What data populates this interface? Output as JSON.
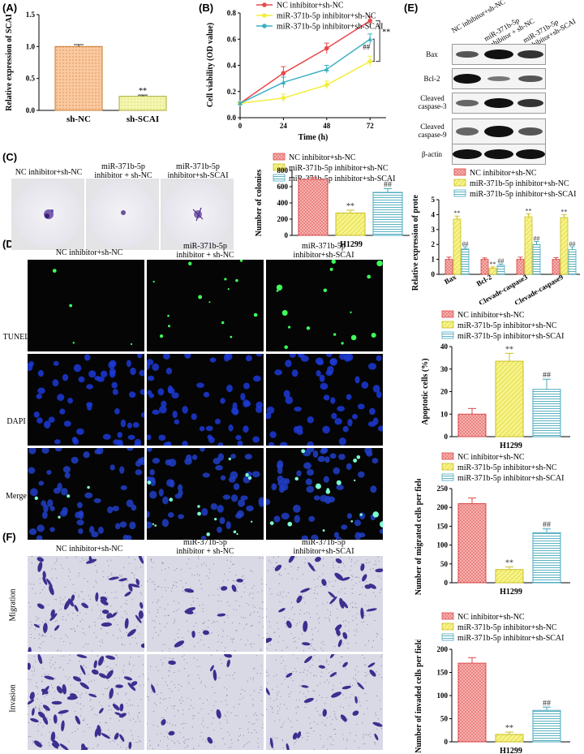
{
  "panels": {
    "A": {
      "label": "(A)",
      "chart_data": {
        "type": "bar",
        "categories": [
          "sh-NC",
          "sh-SCAI"
        ],
        "values": [
          1.0,
          0.22
        ],
        "errors": [
          0.03,
          0.02
        ],
        "ylabel": "Relative expression of SCAI",
        "ylim": [
          0,
          1.5
        ],
        "yticks": [
          "0.0",
          "0.5",
          "1.0",
          "1.5"
        ],
        "significance": [
          "",
          "**"
        ],
        "colors": [
          "#f7c79a",
          "#f4f7a8"
        ]
      }
    },
    "B": {
      "label": "(B)",
      "chart_data": {
        "type": "line",
        "x": [
          0,
          24,
          48,
          72
        ],
        "xticks": [
          "0",
          "24",
          "48",
          "72"
        ],
        "xlabel": "Time (h)",
        "ylabel": "Cell viability (OD value)",
        "ylim": [
          0,
          0.8
        ],
        "yticks": [
          "0.0",
          "0.2",
          "0.4",
          "0.6",
          "0.8"
        ],
        "series": [
          {
            "name": "NC inhibitor+sh-NC",
            "values": [
              0.11,
              0.34,
              0.53,
              0.74
            ],
            "errors": [
              0.01,
              0.05,
              0.04,
              0.03
            ],
            "color": "#e8484a"
          },
          {
            "name": "miR-371b-5p inhibitor+sh-NC",
            "values": [
              0.11,
              0.15,
              0.25,
              0.43
            ],
            "errors": [
              0.01,
              0.03,
              0.03,
              0.04
            ],
            "color": "#f2ee3a"
          },
          {
            "name": "miR-371b-5p inhibitor+sh-SCAI",
            "values": [
              0.11,
              0.27,
              0.37,
              0.6
            ],
            "errors": [
              0.01,
              0.04,
              0.03,
              0.04
            ],
            "color": "#3cb1c3"
          }
        ],
        "annotations": [
          "**",
          "##"
        ]
      }
    },
    "C": {
      "label": "(C)",
      "photo_captions": [
        "NC inhibitor+sh-NC",
        "miR-371b-5p\ninhibitor + sh-NC",
        "miR-371b-5p\ninhibitor+sh-SCAI"
      ],
      "chart_data": {
        "type": "bar",
        "categories": [
          "NC inhibitor+sh-NC",
          "miR-371b-5p inhibitor+sh-NC",
          "miR-371b-5p inhibitor+sh-SCAI"
        ],
        "values": [
          690,
          275,
          530
        ],
        "errors": [
          22,
          35,
          45
        ],
        "ylabel": "Number  of  colonies",
        "xlabel": "H1299",
        "ylim": [
          0,
          800
        ],
        "yticks": [
          "0",
          "200",
          "400",
          "600",
          "800"
        ],
        "significance": [
          "",
          "**",
          "##"
        ]
      }
    },
    "D": {
      "label": "(D)",
      "column_captions": [
        "NC inhibitor+sh-NC",
        "miR-371b-5p\ninhibitor + sh-NC",
        "miR-371b-5p\ninhibitor+sh-SCAI"
      ],
      "row_labels": [
        "TUNEL",
        "DAPI",
        "Merge"
      ],
      "chart_data": {
        "type": "bar",
        "categories": [
          "NC inhibitor+sh-NC",
          "miR-371b-5p inhibitor+sh-NC",
          "miR-371b-5p inhibitor+sh-SCAI"
        ],
        "values": [
          10,
          33.5,
          21
        ],
        "errors": [
          2.5,
          3.5,
          4.5
        ],
        "ylabel": "Apoptotic cells (%)",
        "xlabel": "H1299",
        "ylim": [
          0,
          40
        ],
        "yticks": [
          "0",
          "10",
          "20",
          "30",
          "40"
        ],
        "significance": [
          "",
          "**",
          "##"
        ]
      }
    },
    "E": {
      "label": "(E)",
      "lane_labels": [
        "NC inhibitor+sh-NC",
        "miR-371b-5p inhibitor + sh-NC",
        "miR-371b-5p inhibitor+sh-SCAI"
      ],
      "blot_labels": [
        "Bax",
        "Bcl-2",
        "Cleaved\ncaspase-3",
        "Cleaved\ncaspase-9",
        "β-actin"
      ],
      "chart_data": {
        "type": "bar",
        "categories": [
          "Bax",
          "Bcl-2",
          "Clevade-caspase3",
          "Clevade-caspase9"
        ],
        "series": [
          {
            "name": "NC inhibitor+sh-NC",
            "values": [
              1.0,
              1.0,
              1.0,
              1.0
            ],
            "errors": [
              0.15,
              0.1,
              0.15,
              0.12
            ]
          },
          {
            "name": "miR-371b-5p inhibitor+sh-NC",
            "values": [
              3.7,
              0.4,
              3.85,
              3.8
            ],
            "errors": [
              0.2,
              0.1,
              0.2,
              0.2
            ]
          },
          {
            "name": "miR-371b-5p inhibitor+sh-SCAI",
            "values": [
              1.7,
              0.6,
              2.0,
              1.65
            ],
            "errors": [
              0.15,
              0.1,
              0.2,
              0.2
            ]
          }
        ],
        "ylabel": "Relative expression of protein",
        "ylim": [
          0,
          5
        ],
        "yticks": [
          "0",
          "1",
          "2",
          "3",
          "4",
          "5"
        ],
        "significance": [
          [
            "",
            "**",
            "##"
          ],
          [
            "",
            "**",
            "##"
          ],
          [
            "",
            "**",
            "##"
          ],
          [
            "",
            "**",
            "##"
          ]
        ]
      }
    },
    "F": {
      "label": "(F)",
      "column_captions": [
        "NC inhibitor+sh-NC",
        "miR-371b-5p\ninhibitor + sh-NC",
        "miR-371b-5p\ninhibitor+sh-SCAI"
      ],
      "row_labels": [
        "Migration",
        "Invasion"
      ],
      "migration_chart": {
        "type": "bar",
        "categories": [
          "NC inhibitor+sh-NC",
          "miR-371b-5p inhibitor+sh-NC",
          "miR-371b-5p inhibitor+sh-SCAI"
        ],
        "values": [
          210,
          35,
          133
        ],
        "errors": [
          15,
          7,
          10
        ],
        "ylabel": "Number of migrated cells per field",
        "xlabel": "H1299",
        "ylim": [
          0,
          250
        ],
        "yticks": [
          "0",
          "50",
          "100",
          "150",
          "200",
          "250"
        ],
        "significance": [
          "",
          "**",
          "##"
        ]
      },
      "invasion_chart": {
        "type": "bar",
        "categories": [
          "NC inhibitor+sh-NC",
          "miR-371b-5p inhibitor+sh-NC",
          "miR-371b-5p inhibitor+sh-SCAI"
        ],
        "values": [
          170,
          16,
          68
        ],
        "errors": [
          12,
          5,
          7
        ],
        "ylabel": "Number of invaded cells per field",
        "xlabel": "H1299",
        "ylim": [
          0,
          200
        ],
        "yticks": [
          "0",
          "50",
          "100",
          "150",
          "200"
        ],
        "significance": [
          "",
          "**",
          "##"
        ]
      }
    }
  },
  "legend": [
    "NC inhibitor+sh-NC",
    "miR-371b-5p inhibitor+sh-NC",
    "miR-371b-5p inhibitor+sh-SCAI"
  ],
  "group_styles": {
    "colors": [
      "#f29b9b",
      "#f4f37a",
      "#cdeef2"
    ],
    "patterns": [
      "dots",
      "diagonal",
      "horizontal-lines"
    ]
  }
}
